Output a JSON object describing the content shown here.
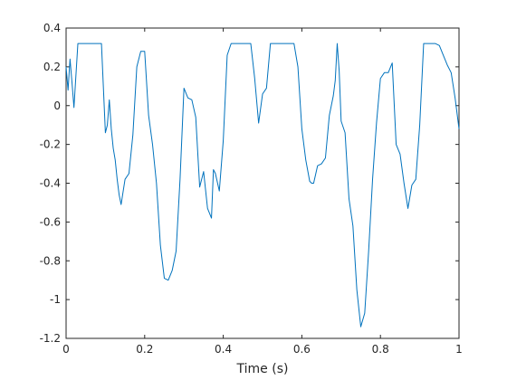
{
  "chart_data": {
    "type": "line",
    "title": "",
    "xlabel": "Time (s)",
    "ylabel": "",
    "xlim": [
      0,
      1
    ],
    "ylim": [
      -1.2,
      0.4
    ],
    "xticks": [
      0,
      0.2,
      0.4,
      0.6,
      0.8,
      1
    ],
    "xtick_labels": [
      "0",
      "0.2",
      "0.4",
      "0.6",
      "0.8",
      "1"
    ],
    "yticks": [
      0.4,
      0.2,
      0,
      -0.2,
      -0.4,
      -0.6,
      -0.8,
      -1,
      -1.2
    ],
    "ytick_labels": [
      "0.4",
      "0.2",
      "0",
      "-0.2",
      "-0.4",
      "-0.6",
      "-0.8",
      "-1",
      "-1.2"
    ],
    "grid": false,
    "line_color": "#0072bd",
    "series": [
      {
        "name": "",
        "x": [
          0,
          0.005,
          0.01,
          0.015,
          0.02,
          0.03,
          0.05,
          0.07,
          0.09,
          0.1,
          0.105,
          0.11,
          0.115,
          0.12,
          0.125,
          0.13,
          0.135,
          0.14,
          0.15,
          0.16,
          0.17,
          0.18,
          0.19,
          0.2,
          0.21,
          0.22,
          0.23,
          0.24,
          0.25,
          0.26,
          0.27,
          0.28,
          0.29,
          0.3,
          0.31,
          0.32,
          0.33,
          0.34,
          0.35,
          0.36,
          0.37,
          0.375,
          0.38,
          0.39,
          0.4,
          0.41,
          0.42,
          0.43,
          0.45,
          0.47,
          0.48,
          0.49,
          0.5,
          0.51,
          0.52,
          0.53,
          0.55,
          0.58,
          0.59,
          0.6,
          0.61,
          0.62,
          0.625,
          0.63,
          0.64,
          0.65,
          0.66,
          0.67,
          0.68,
          0.685,
          0.69,
          0.695,
          0.7,
          0.71,
          0.72,
          0.73,
          0.74,
          0.75,
          0.76,
          0.77,
          0.78,
          0.79,
          0.8,
          0.81,
          0.82,
          0.83,
          0.84,
          0.85,
          0.86,
          0.87,
          0.88,
          0.89,
          0.9,
          0.91,
          0.92,
          0.93,
          0.94,
          0.95,
          0.96,
          0.97,
          0.98,
          0.99,
          1.0
        ],
        "y": [
          0.2,
          0.08,
          0.24,
          0.12,
          -0.01,
          0.32,
          0.32,
          0.32,
          0.32,
          -0.14,
          -0.1,
          0.03,
          -0.12,
          -0.22,
          -0.28,
          -0.38,
          -0.46,
          -0.51,
          -0.38,
          -0.35,
          -0.15,
          0.2,
          0.28,
          0.28,
          -0.05,
          -0.2,
          -0.4,
          -0.72,
          -0.89,
          -0.9,
          -0.85,
          -0.75,
          -0.38,
          0.09,
          0.04,
          0.03,
          -0.06,
          -0.42,
          -0.34,
          -0.53,
          -0.58,
          -0.33,
          -0.35,
          -0.44,
          -0.18,
          0.26,
          0.32,
          0.32,
          0.32,
          0.32,
          0.14,
          -0.09,
          0.06,
          0.09,
          0.32,
          0.32,
          0.32,
          0.32,
          0.2,
          -0.12,
          -0.28,
          -0.39,
          -0.4,
          -0.4,
          -0.31,
          -0.3,
          -0.27,
          -0.05,
          0.05,
          0.13,
          0.32,
          0.18,
          -0.08,
          -0.14,
          -0.48,
          -0.62,
          -0.95,
          -1.14,
          -1.07,
          -0.75,
          -0.38,
          -0.09,
          0.14,
          0.17,
          0.17,
          0.22,
          -0.2,
          -0.25,
          -0.4,
          -0.53,
          -0.41,
          -0.38,
          -0.1,
          0.32,
          0.32,
          0.32,
          0.32,
          0.31,
          0.26,
          0.21,
          0.17,
          0.04,
          -0.12
        ]
      }
    ]
  }
}
